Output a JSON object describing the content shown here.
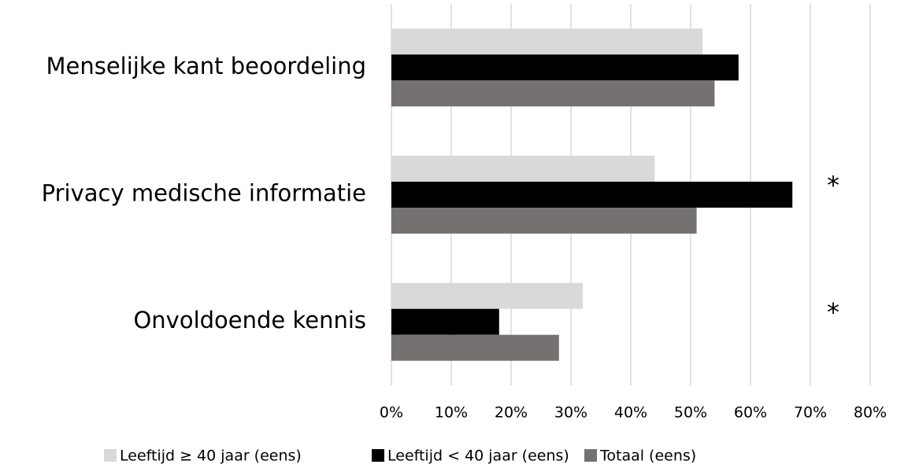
{
  "chart_data": {
    "type": "hbar",
    "categories": [
      "Menselijke kant beoordeling",
      "Privacy medische informatie",
      "Onvoldoende kennis"
    ],
    "series": [
      {
        "name": "Leeftijd ≥ 40 jaar (eens)",
        "color": "#d9d9d9",
        "values": [
          52,
          44,
          32
        ]
      },
      {
        "name": "Leeftijd < 40 jaar (eens)",
        "color": "#000000",
        "values": [
          58,
          67,
          18
        ]
      },
      {
        "name": "Totaal (eens)",
        "color": "#767171",
        "values": [
          54,
          51,
          28
        ]
      }
    ],
    "annotations": [
      null,
      "*",
      "*"
    ],
    "xlim": [
      0,
      80
    ],
    "xticks": [
      {
        "value": 0,
        "label": "0%"
      },
      {
        "value": 10,
        "label": "10%"
      },
      {
        "value": 20,
        "label": "20%"
      },
      {
        "value": 30,
        "label": "30%"
      },
      {
        "value": 40,
        "label": "40%"
      },
      {
        "value": 50,
        "label": "50%"
      },
      {
        "value": 60,
        "label": "60%"
      },
      {
        "value": 70,
        "label": "70%"
      },
      {
        "value": 80,
        "label": "80%"
      }
    ],
    "grid": true,
    "legend": "bottom"
  }
}
